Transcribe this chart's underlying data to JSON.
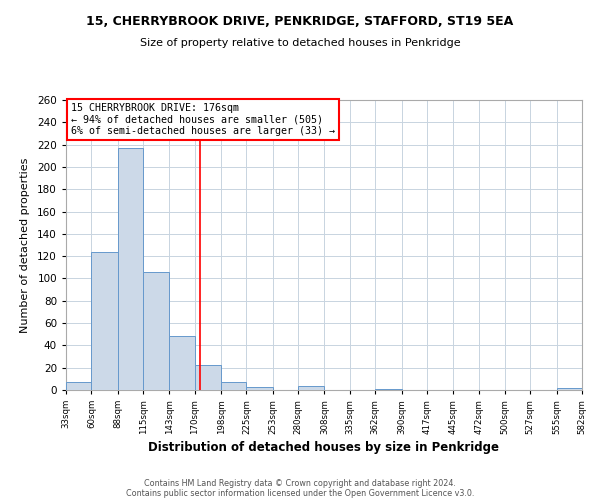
{
  "title1": "15, CHERRYBROOK DRIVE, PENKRIDGE, STAFFORD, ST19 5EA",
  "title2": "Size of property relative to detached houses in Penkridge",
  "xlabel": "Distribution of detached houses by size in Penkridge",
  "ylabel": "Number of detached properties",
  "bar_color": "#ccd9e8",
  "bar_edge_color": "#6699cc",
  "plot_bg_color": "#ffffff",
  "fig_bg_color": "#ffffff",
  "grid_color": "#c8d4e0",
  "vline_x": 176,
  "vline_color": "red",
  "annotation_line1": "15 CHERRYBROOK DRIVE: 176sqm",
  "annotation_line2": "← 94% of detached houses are smaller (505)",
  "annotation_line3": "6% of semi-detached houses are larger (33) →",
  "bin_edges": [
    33,
    60,
    88,
    115,
    143,
    170,
    198,
    225,
    253,
    280,
    308,
    335,
    362,
    390,
    417,
    445,
    472,
    500,
    527,
    555,
    582
  ],
  "bin_counts": [
    7,
    124,
    217,
    106,
    48,
    22,
    7,
    3,
    0,
    4,
    0,
    0,
    1,
    0,
    0,
    0,
    0,
    0,
    0,
    2
  ],
  "ylim": [
    0,
    260
  ],
  "yticks": [
    0,
    20,
    40,
    60,
    80,
    100,
    120,
    140,
    160,
    180,
    200,
    220,
    240,
    260
  ],
  "xtick_labels": [
    "33sqm",
    "60sqm",
    "88sqm",
    "115sqm",
    "143sqm",
    "170sqm",
    "198sqm",
    "225sqm",
    "253sqm",
    "280sqm",
    "308sqm",
    "335sqm",
    "362sqm",
    "390sqm",
    "417sqm",
    "445sqm",
    "472sqm",
    "500sqm",
    "527sqm",
    "555sqm",
    "582sqm"
  ],
  "footer1": "Contains HM Land Registry data © Crown copyright and database right 2024.",
  "footer2": "Contains public sector information licensed under the Open Government Licence v3.0."
}
